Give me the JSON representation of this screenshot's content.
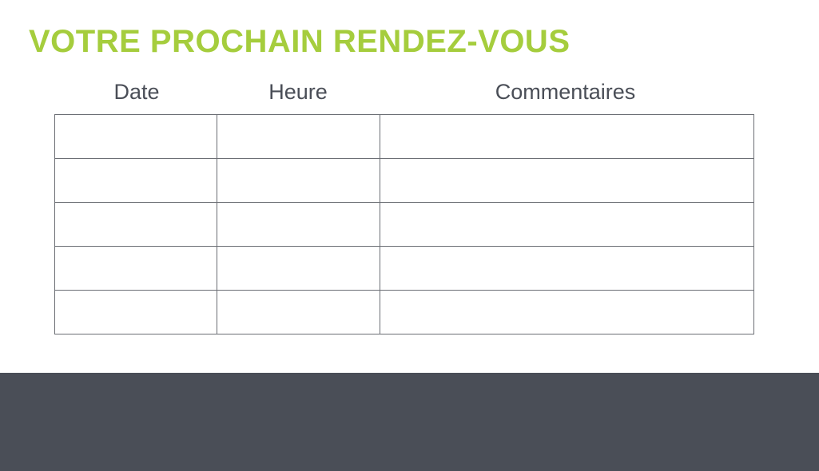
{
  "title": "VOTRE PROCHAIN RENDEZ-VOUS",
  "columns": [
    "Date",
    "Heure",
    "Commentaires"
  ],
  "rows": 5,
  "colors": {
    "accent": "#a5cd3d",
    "footer": "#4a4e57"
  }
}
